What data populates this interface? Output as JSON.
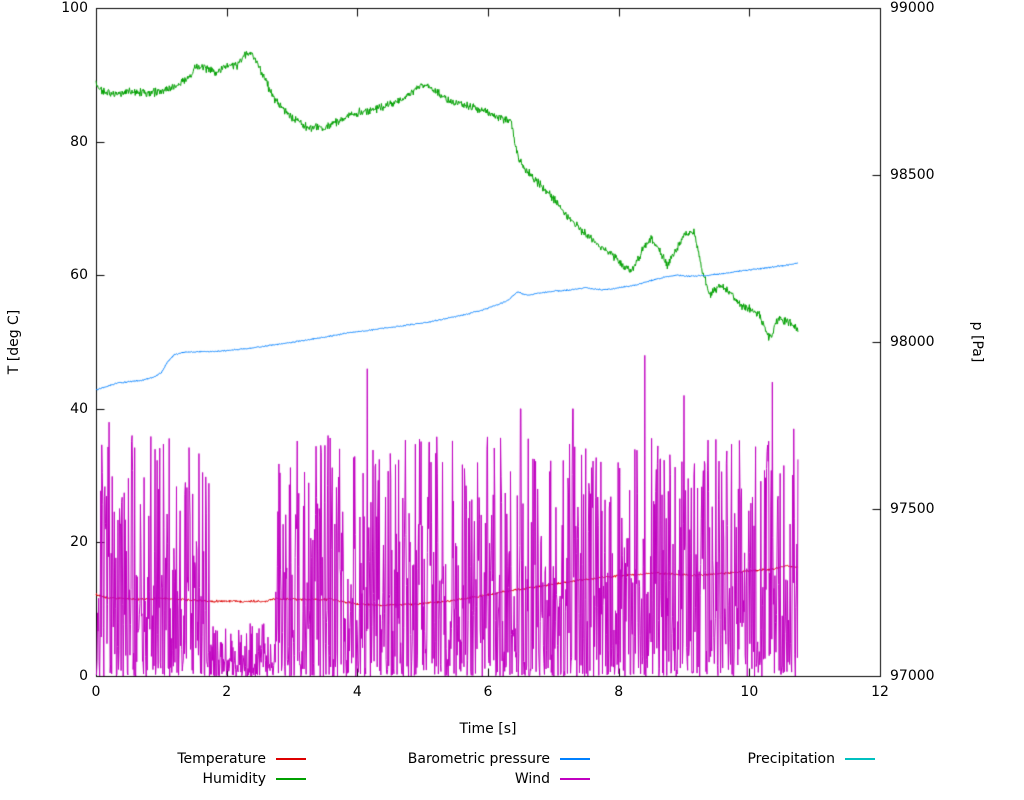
{
  "chart_data": {
    "type": "line",
    "title": "",
    "xlabel": "Time [s]",
    "ylabel_left": "T [deg C]",
    "ylabel_right": "p [Pa]",
    "x_range": [
      0,
      12
    ],
    "y_left_range": [
      0,
      100
    ],
    "y_right_range": [
      97000,
      99000
    ],
    "x_ticks": [
      0,
      2,
      4,
      6,
      8,
      10,
      12
    ],
    "y_left_ticks": [
      0,
      20,
      40,
      60,
      80,
      100
    ],
    "y_right_ticks": [
      97000,
      97500,
      98000,
      98500,
      99000
    ],
    "grid": false,
    "legend_position": "below",
    "legend_rows": [
      [
        "Temperature",
        "Barometric pressure",
        "Precipitation"
      ],
      [
        "Humidity",
        "Wind"
      ]
    ],
    "series": [
      {
        "name": "Temperature",
        "axis": "left",
        "color": "#dd0000",
        "style": "noisy-line",
        "noise": 0.22,
        "anchors": [
          [
            0,
            12.2
          ],
          [
            0.15,
            11.7
          ],
          [
            0.4,
            11.6
          ],
          [
            0.7,
            11.5
          ],
          [
            1.0,
            11.6
          ],
          [
            1.3,
            11.5
          ],
          [
            1.55,
            11.3
          ],
          [
            1.7,
            11.2
          ],
          [
            2.2,
            11.2
          ],
          [
            2.6,
            11.2
          ],
          [
            2.75,
            11.6
          ],
          [
            3.1,
            11.5
          ],
          [
            3.4,
            11.4
          ],
          [
            3.6,
            11.5
          ],
          [
            3.8,
            11.1
          ],
          [
            4.0,
            10.8
          ],
          [
            4.3,
            10.6
          ],
          [
            4.7,
            10.7
          ],
          [
            5.0,
            10.8
          ],
          [
            5.3,
            11.1
          ],
          [
            5.6,
            11.5
          ],
          [
            5.9,
            12.0
          ],
          [
            6.2,
            12.5
          ],
          [
            6.5,
            13.0
          ],
          [
            6.8,
            13.4
          ],
          [
            7.1,
            13.9
          ],
          [
            7.4,
            14.3
          ],
          [
            7.7,
            14.7
          ],
          [
            8.0,
            15.0
          ],
          [
            8.3,
            15.2
          ],
          [
            8.6,
            15.4
          ],
          [
            8.9,
            15.2
          ],
          [
            9.2,
            15.1
          ],
          [
            9.5,
            15.3
          ],
          [
            9.8,
            15.5
          ],
          [
            10.1,
            15.8
          ],
          [
            10.35,
            16.0
          ],
          [
            10.55,
            16.5
          ],
          [
            10.75,
            16.3
          ]
        ]
      },
      {
        "name": "Humidity",
        "axis": "left",
        "color": "#00a000",
        "style": "noisy-line",
        "noise": 0.75,
        "anchors": [
          [
            0,
            88.5
          ],
          [
            0.1,
            87.5
          ],
          [
            0.3,
            87.0
          ],
          [
            0.5,
            87.5
          ],
          [
            0.8,
            87.3
          ],
          [
            1.0,
            87.5
          ],
          [
            1.2,
            88.0
          ],
          [
            1.4,
            89.5
          ],
          [
            1.55,
            91.3
          ],
          [
            1.7,
            91.0
          ],
          [
            1.85,
            90.3
          ],
          [
            2.0,
            91.5
          ],
          [
            2.15,
            91.3
          ],
          [
            2.3,
            93.3
          ],
          [
            2.4,
            93.0
          ],
          [
            2.5,
            91.0
          ],
          [
            2.6,
            89.0
          ],
          [
            2.7,
            87.0
          ],
          [
            2.8,
            85.5
          ],
          [
            2.9,
            84.5
          ],
          [
            3.0,
            83.5
          ],
          [
            3.2,
            82.3
          ],
          [
            3.5,
            82.0
          ],
          [
            3.7,
            83.0
          ],
          [
            3.9,
            84.0
          ],
          [
            4.1,
            84.5
          ],
          [
            4.3,
            85.0
          ],
          [
            4.5,
            85.5
          ],
          [
            4.7,
            86.5
          ],
          [
            4.9,
            88.0
          ],
          [
            5.05,
            88.5
          ],
          [
            5.2,
            87.5
          ],
          [
            5.4,
            86.0
          ],
          [
            5.6,
            85.5
          ],
          [
            5.8,
            85.0
          ],
          [
            6.0,
            84.5
          ],
          [
            6.2,
            83.5
          ],
          [
            6.35,
            83.0
          ],
          [
            6.45,
            78.0
          ],
          [
            6.55,
            76.0
          ],
          [
            6.7,
            74.5
          ],
          [
            6.85,
            73.0
          ],
          [
            7.0,
            71.5
          ],
          [
            7.15,
            69.5
          ],
          [
            7.3,
            68.0
          ],
          [
            7.5,
            66.0
          ],
          [
            7.7,
            64.5
          ],
          [
            7.9,
            63.0
          ],
          [
            8.05,
            61.5
          ],
          [
            8.2,
            60.5
          ],
          [
            8.35,
            63.5
          ],
          [
            8.5,
            65.5
          ],
          [
            8.6,
            64.0
          ],
          [
            8.75,
            61.5
          ],
          [
            8.9,
            64.0
          ],
          [
            9.0,
            66.0
          ],
          [
            9.15,
            66.5
          ],
          [
            9.3,
            60.0
          ],
          [
            9.4,
            57.0
          ],
          [
            9.55,
            58.5
          ],
          [
            9.7,
            57.5
          ],
          [
            9.85,
            55.5
          ],
          [
            10.0,
            55.0
          ],
          [
            10.15,
            54.0
          ],
          [
            10.3,
            50.5
          ],
          [
            10.45,
            53.5
          ],
          [
            10.6,
            53.0
          ],
          [
            10.75,
            52.0
          ]
        ]
      },
      {
        "name": "Barometric pressure",
        "axis": "right",
        "color": "#0080ff",
        "style": "noisy-line",
        "noise": 2.5,
        "anchors": [
          [
            0,
            97856
          ],
          [
            0.15,
            97866
          ],
          [
            0.3,
            97876
          ],
          [
            0.5,
            97881
          ],
          [
            0.7,
            97885
          ],
          [
            0.9,
            97896
          ],
          [
            1.0,
            97908
          ],
          [
            1.1,
            97942
          ],
          [
            1.2,
            97962
          ],
          [
            1.35,
            97970
          ],
          [
            1.6,
            97971
          ],
          [
            1.85,
            97972
          ],
          [
            2.1,
            97976
          ],
          [
            2.35,
            97981
          ],
          [
            2.6,
            97988
          ],
          [
            2.85,
            97995
          ],
          [
            3.1,
            98002
          ],
          [
            3.35,
            98010
          ],
          [
            3.6,
            98018
          ],
          [
            3.85,
            98027
          ],
          [
            4.1,
            98033
          ],
          [
            4.35,
            98040
          ],
          [
            4.6,
            98046
          ],
          [
            4.85,
            98053
          ],
          [
            5.1,
            98060
          ],
          [
            5.35,
            98070
          ],
          [
            5.6,
            98080
          ],
          [
            5.85,
            98092
          ],
          [
            6.1,
            98108
          ],
          [
            6.3,
            98124
          ],
          [
            6.45,
            98150
          ],
          [
            6.6,
            98140
          ],
          [
            6.8,
            98147
          ],
          [
            7.0,
            98152
          ],
          [
            7.25,
            98156
          ],
          [
            7.5,
            98162
          ],
          [
            7.75,
            98156
          ],
          [
            8.0,
            98162
          ],
          [
            8.25,
            98170
          ],
          [
            8.5,
            98184
          ],
          [
            8.7,
            98194
          ],
          [
            8.9,
            98200
          ],
          [
            9.1,
            98197
          ],
          [
            9.35,
            98199
          ],
          [
            9.6,
            98205
          ],
          [
            9.85,
            98212
          ],
          [
            10.1,
            98218
          ],
          [
            10.35,
            98224
          ],
          [
            10.6,
            98231
          ],
          [
            10.75,
            98236
          ]
        ]
      },
      {
        "name": "Wind",
        "axis": "left",
        "color": "#c000c0",
        "style": "spiky",
        "spec": {
          "x_start": 0,
          "x_end": 10.75,
          "amplitude_max": 36,
          "exponent": 2.0,
          "quiet": [
            1.75,
            2.75
          ],
          "quiet_max": 8,
          "spikes": [
            [
              0.2,
              38
            ],
            [
              0.55,
              36
            ],
            [
              3.55,
              36
            ],
            [
              4.15,
              46
            ],
            [
              5.1,
              35
            ],
            [
              6.5,
              40
            ],
            [
              7.3,
              40
            ],
            [
              8.4,
              48
            ],
            [
              9.0,
              42
            ],
            [
              10.35,
              44
            ],
            [
              10.68,
              37
            ]
          ]
        }
      },
      {
        "name": "Precipitation",
        "axis": "left",
        "color": "#00c0c0",
        "style": "noisy-line",
        "noise": 0,
        "visible": false,
        "anchors": []
      }
    ]
  }
}
